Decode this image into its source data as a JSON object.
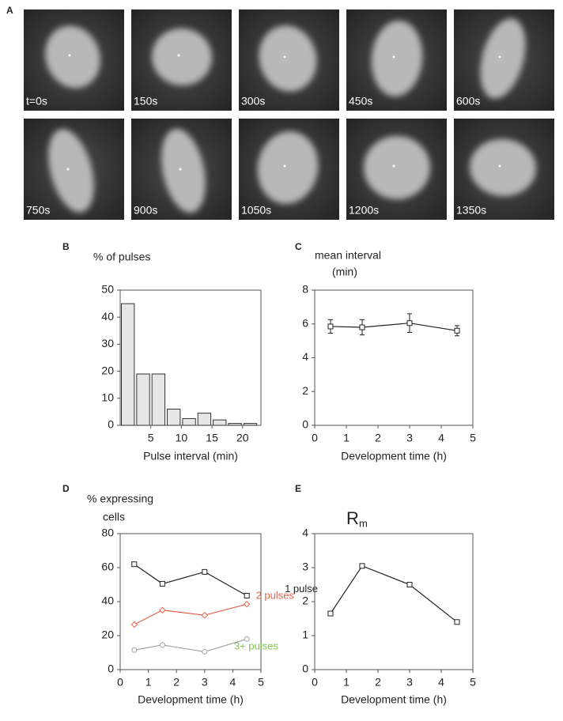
{
  "image_grid": {
    "panel": "A",
    "frames": [
      "t=0s",
      "150s",
      "300s",
      "450s",
      "600s",
      "750s",
      "900s",
      "1050s",
      "1200s",
      "1350s"
    ]
  },
  "chart_data": [
    {
      "type": "histogram",
      "panel": "B",
      "title": [
        "% of pulses"
      ],
      "xlabel": "Pulse interval (min)",
      "bins": [
        0,
        2.5,
        5,
        7.5,
        10,
        12.5,
        15,
        17.5,
        20,
        22.5
      ],
      "values": [
        45,
        19,
        19,
        6,
        2.5,
        4.5,
        2,
        0.7,
        0.7
      ],
      "color": "#e6e6e6",
      "xlim": [
        0,
        23
      ],
      "xticks": [
        5,
        10,
        15,
        20
      ],
      "ylim": [
        0,
        50
      ],
      "yticks": [
        0,
        10,
        20,
        30,
        40,
        50
      ]
    },
    {
      "type": "line",
      "panel": "C",
      "title": [
        "mean interval",
        "(min)"
      ],
      "xlabel": "Development time (h)",
      "x": [
        0.5,
        1.5,
        3,
        4.5
      ],
      "series": [
        {
          "color": "#222222",
          "marker": "square",
          "values": [
            5.85,
            5.8,
            6.05,
            5.6
          ],
          "errors": [
            0.4,
            0.45,
            0.55,
            0.3
          ]
        }
      ],
      "xlim": [
        0,
        5
      ],
      "xticks": [
        0,
        1,
        2,
        3,
        4,
        5
      ],
      "ylim": [
        0,
        8
      ],
      "yticks": [
        0,
        2,
        4,
        6,
        8
      ]
    },
    {
      "type": "line",
      "panel": "D",
      "title": [
        "% expressing",
        "cells"
      ],
      "xlabel": "Development time (h)",
      "x": [
        0.5,
        1.5,
        3,
        4.5
      ],
      "series": [
        {
          "name": "1 pulse",
          "color": "#222222",
          "label_color": "#222222",
          "marker": "square",
          "values": [
            62,
            50.5,
            57.5,
            43.5
          ]
        },
        {
          "name": "2 pulses",
          "color": "#e0654a",
          "label_color": "#e0654a",
          "marker": "diamond",
          "values": [
            26.5,
            35,
            32,
            38.5
          ]
        },
        {
          "name": "3+ pulses",
          "color": "#a0a0a0",
          "label_color": "#7cc04a",
          "marker": "circle",
          "values": [
            11.5,
            14.5,
            10.5,
            18
          ]
        }
      ],
      "xlim": [
        0,
        5
      ],
      "xticks": [
        0,
        1,
        2,
        3,
        4,
        5
      ],
      "ylim": [
        0,
        80
      ],
      "yticks": [
        0,
        20,
        40,
        60,
        80
      ]
    },
    {
      "type": "line",
      "panel": "E",
      "title": [
        "R"
      ],
      "title_sub": "m",
      "xlabel": "Development time (h)",
      "x": [
        0.5,
        1.5,
        3,
        4.5
      ],
      "series": [
        {
          "color": "#222222",
          "marker": "square",
          "values": [
            1.65,
            3.05,
            2.5,
            1.4
          ]
        }
      ],
      "xlim": [
        0,
        5
      ],
      "xticks": [
        0,
        1,
        2,
        3,
        4,
        5
      ],
      "ylim": [
        0,
        4
      ],
      "yticks": [
        0,
        1,
        2,
        3,
        4
      ]
    }
  ]
}
